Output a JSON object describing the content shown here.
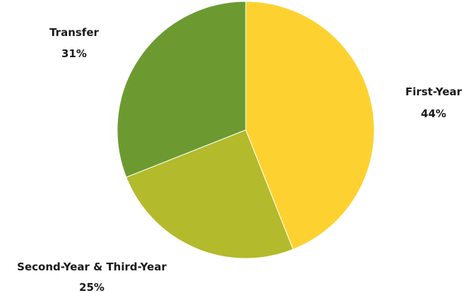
{
  "chart_data": {
    "type": "pie",
    "categories": [
      "First-Year",
      "Second-Year & Third-Year",
      "Transfer"
    ],
    "values": [
      44,
      25,
      31
    ],
    "labels": [
      {
        "name": "First-Year",
        "value": "44%"
      },
      {
        "name": "Second-Year & Third-Year",
        "value": "25%"
      },
      {
        "name": "Transfer",
        "value": "31%"
      }
    ],
    "colors": [
      "#fdd230",
      "#b3ba2b",
      "#6c9a31"
    ],
    "start_angle_deg": 0,
    "direction": "clockwise",
    "legend": "none"
  }
}
